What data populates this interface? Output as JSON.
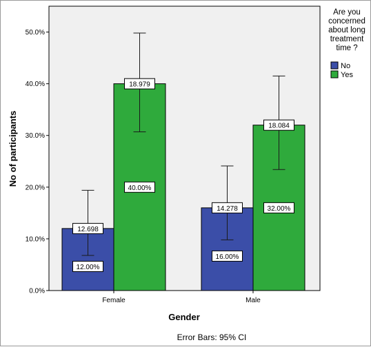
{
  "chart_data": {
    "type": "bar",
    "categories": [
      "Female",
      "Male"
    ],
    "series": [
      {
        "name": "No",
        "color": "#3b4ea8",
        "values": [
          12.0,
          16.0
        ],
        "value_labels": [
          "12.00%",
          "16.00%"
        ],
        "error_low": [
          6.8,
          9.8
        ],
        "error_high": [
          19.4,
          24.1
        ],
        "upper_labels": [
          "12.698",
          "14.278"
        ]
      },
      {
        "name": "Yes",
        "color": "#2faa3c",
        "values": [
          40.0,
          32.0
        ],
        "value_labels": [
          "40.00%",
          "32.00%"
        ],
        "error_low": [
          30.7,
          23.4
        ],
        "error_high": [
          49.8,
          41.5
        ],
        "upper_labels": [
          "18.979",
          "18.084"
        ]
      }
    ],
    "xlabel": "Gender",
    "ylabel": "No of participants",
    "ylim": [
      0,
      55
    ],
    "yticks": [
      0,
      10,
      20,
      30,
      40,
      50
    ],
    "ytick_labels": [
      "0.0%",
      "10.0%",
      "20.0%",
      "30.0%",
      "40.0%",
      "50.0%"
    ],
    "legend": {
      "title_lines": [
        "Are you",
        "concerned",
        "about long",
        "treatment",
        "time ?"
      ],
      "position": "right"
    },
    "footnote": "Error Bars: 95% CI",
    "plot_background": "#f0f0f0",
    "grid": false
  }
}
